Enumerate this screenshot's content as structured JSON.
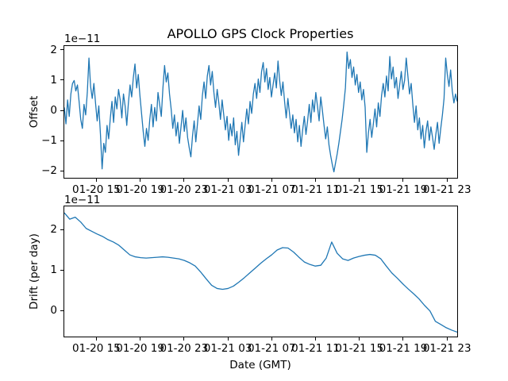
{
  "figure": {
    "background": "#ffffff",
    "text_color": "#000000"
  },
  "chart_data": [
    {
      "type": "line",
      "title": "APOLLO GPS Clock Properties",
      "ylabel": "Offset",
      "offset_text": "1e−11",
      "y_unit": "1e-11",
      "line_color": "#1f77b4",
      "grid": false,
      "ylim": [
        -2.25,
        2.15
      ],
      "yticks": [
        2,
        1,
        0,
        -1,
        -2
      ],
      "ytick_labels": [
        "2",
        "1",
        "0",
        "−1",
        "−2"
      ],
      "xtick_labels": [
        "01-20 15",
        "01-20 19",
        "01-20 23",
        "01-21 03",
        "01-21 07",
        "01-21 11",
        "01-21 15",
        "01-21 19",
        "01-21 23"
      ],
      "xtick_hours": [
        3,
        7,
        11,
        15,
        19,
        23,
        27,
        31,
        35
      ],
      "x_total_hours": 36,
      "values_1e11": [
        0.1,
        -0.45,
        0.35,
        -0.2,
        0.55,
        0.9,
        1.0,
        0.65,
        0.85,
        0.3,
        -0.3,
        -0.6,
        0.2,
        -0.15,
        0.6,
        1.75,
        0.8,
        0.4,
        0.9,
        0.25,
        -0.35,
        0.15,
        -0.8,
        -1.95,
        -1.1,
        -1.4,
        -0.5,
        -0.95,
        -0.25,
        0.3,
        -0.4,
        0.45,
        0.05,
        0.7,
        0.35,
        -0.25,
        0.55,
        0.15,
        -0.5,
        0.25,
        0.85,
        0.45,
        1.1,
        1.55,
        0.75,
        1.2,
        0.5,
        -0.1,
        -0.7,
        -1.2,
        -0.6,
        -1.0,
        -0.3,
        0.2,
        -0.55,
        0.1,
        -0.35,
        0.6,
        0.2,
        -0.2,
        0.75,
        1.5,
        0.95,
        1.25,
        0.55,
        0.05,
        -0.6,
        -0.15,
        -0.85,
        -0.4,
        -1.1,
        -0.55,
        0.0,
        -0.7,
        -0.25,
        -0.9,
        -1.25,
        -1.55,
        -0.85,
        -0.35,
        -1.05,
        -0.45,
        0.15,
        -0.3,
        0.5,
        0.95,
        0.4,
        1.15,
        1.5,
        0.85,
        1.3,
        0.6,
        0.1,
        0.7,
        0.25,
        -0.3,
        0.35,
        -0.15,
        -0.65,
        -0.2,
        -1.0,
        -0.45,
        -0.85,
        -0.25,
        -1.15,
        -0.7,
        -1.5,
        -0.95,
        -0.4,
        -1.05,
        -0.5,
        0.05,
        -0.45,
        0.3,
        -0.1,
        0.55,
        0.9,
        0.4,
        1.05,
        0.6,
        1.3,
        1.6,
        0.95,
        1.4,
        0.7,
        1.1,
        0.45,
        0.85,
        1.25,
        0.75,
        1.65,
        1.0,
        0.5,
        0.95,
        0.3,
        -0.25,
        0.4,
        -0.1,
        -0.6,
        -0.15,
        -0.75,
        -0.3,
        -1.05,
        -0.5,
        -1.2,
        -0.65,
        -0.2,
        -0.8,
        -0.35,
        0.2,
        -0.4,
        0.35,
        -0.05,
        0.6,
        0.15,
        -0.35,
        0.45,
        0.0,
        -0.5,
        -0.95,
        -0.55,
        -1.15,
        -1.5,
        -1.8,
        -2.05,
        -1.75,
        -1.45,
        -1.1,
        -0.7,
        -0.3,
        0.2,
        0.75,
        1.95,
        1.4,
        1.7,
        1.1,
        1.45,
        0.85,
        1.2,
        0.6,
        0.95,
        0.35,
        0.7,
        0.1,
        -1.4,
        -0.75,
        -0.3,
        -0.9,
        -0.45,
        0.05,
        -0.55,
        0.25,
        -0.2,
        0.5,
        0.9,
        0.45,
        1.15,
        0.65,
        1.8,
        1.05,
        1.45,
        0.75,
        1.1,
        0.4,
        0.85,
        1.3,
        0.7,
        1.0,
        1.75,
        1.15,
        0.55,
        0.9,
        0.2,
        -0.4,
        0.15,
        -0.65,
        -0.25,
        -0.95,
        -0.5,
        -1.25,
        -0.7,
        -0.35,
        -1.0,
        -0.55,
        -0.9,
        -1.3,
        -0.8,
        -0.4,
        -1.1,
        -0.6,
        -0.15,
        0.4,
        1.75,
        1.2,
        0.8,
        1.35,
        0.65,
        0.25,
        0.55,
        0.3
      ]
    },
    {
      "type": "line",
      "xlabel": "Date (GMT)",
      "ylabel": "Drift (per day)",
      "offset_text": "1e−11",
      "y_unit": "1e-11",
      "line_color": "#1f77b4",
      "grid": false,
      "ylim": [
        -0.66,
        2.59
      ],
      "yticks": [
        2,
        1,
        0
      ],
      "ytick_labels": [
        "2",
        "1",
        "0"
      ],
      "xtick_labels": [
        "01-20 15",
        "01-20 19",
        "01-20 23",
        "01-21 03",
        "01-21 07",
        "01-21 11",
        "01-21 15",
        "01-21 19",
        "01-21 23"
      ],
      "xtick_hours": [
        3,
        7,
        11,
        15,
        19,
        23,
        27,
        31,
        35
      ],
      "x_total_hours": 36,
      "values_1e11": [
        2.43,
        2.27,
        2.32,
        2.2,
        2.04,
        1.97,
        1.9,
        1.84,
        1.76,
        1.7,
        1.62,
        1.5,
        1.38,
        1.33,
        1.31,
        1.3,
        1.31,
        1.32,
        1.33,
        1.32,
        1.3,
        1.28,
        1.24,
        1.18,
        1.1,
        0.95,
        0.78,
        0.62,
        0.54,
        0.52,
        0.54,
        0.6,
        0.7,
        0.81,
        0.93,
        1.05,
        1.17,
        1.28,
        1.38,
        1.5,
        1.56,
        1.55,
        1.45,
        1.32,
        1.2,
        1.14,
        1.1,
        1.12,
        1.3,
        1.7,
        1.42,
        1.28,
        1.24,
        1.3,
        1.34,
        1.37,
        1.39,
        1.37,
        1.28,
        1.1,
        0.93,
        0.8,
        0.66,
        0.53,
        0.41,
        0.28,
        0.12,
        -0.02,
        -0.28,
        -0.36,
        -0.44,
        -0.5,
        -0.55
      ]
    }
  ]
}
